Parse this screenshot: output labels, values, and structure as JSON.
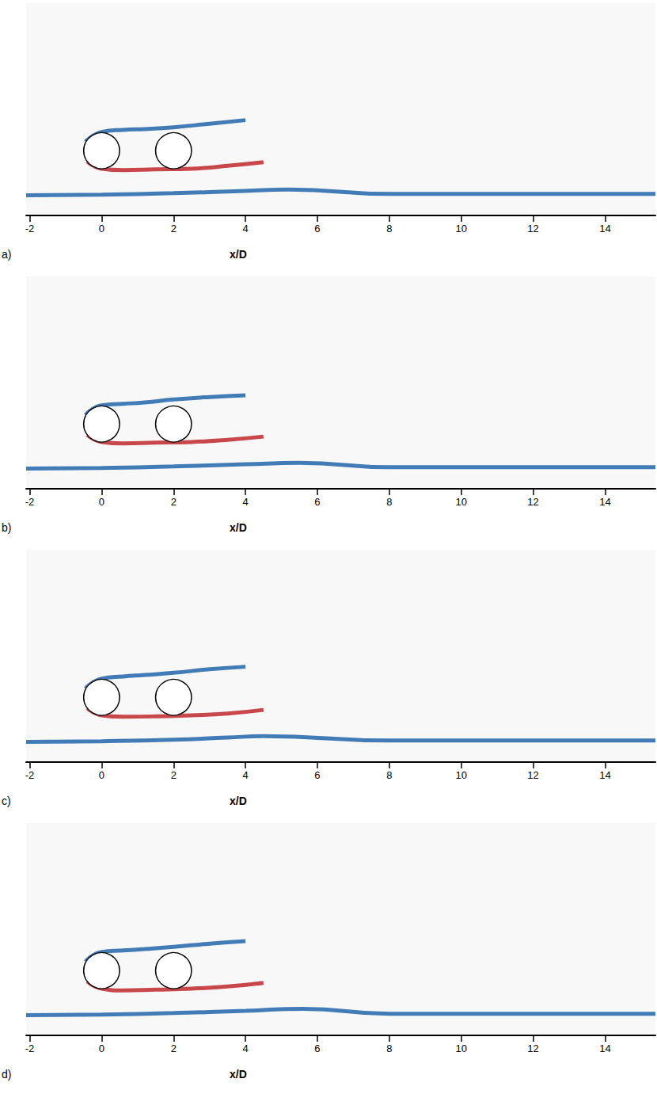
{
  "chart_data": [
    {
      "type": "flow_snapshot",
      "panel": "a)",
      "xlabel": "x/D",
      "xlim": [
        -2.1,
        15.4
      ],
      "xticks": [
        -2,
        0,
        2,
        4,
        6,
        8,
        10,
        12,
        14
      ],
      "ylim": [
        -0.5,
        5.4
      ],
      "tick_labels": "x",
      "cylinders": {
        "x": [
          0,
          2
        ],
        "y": [
          1.3,
          1.3
        ],
        "diameter": [
          1,
          1
        ],
        "color": "#ffffff"
      },
      "series": [
        {
          "type": "line",
          "color": "#2166ac",
          "x": [
            -0.45,
            0,
            0.6,
            1.2,
            2,
            3,
            4
          ],
          "values": [
            1.55,
            1.82,
            1.88,
            1.9,
            1.95,
            2.05,
            2.15
          ]
        },
        {
          "type": "line",
          "color": "#c0282d",
          "x": [
            -0.4,
            0,
            0.6,
            1.5,
            2.5,
            3.5,
            4.5
          ],
          "values": [
            1.0,
            0.8,
            0.76,
            0.78,
            0.8,
            0.88,
            0.98
          ]
        },
        {
          "type": "line",
          "color": "#2166ac",
          "x": [
            -2.1,
            0,
            2,
            4,
            5.2,
            8,
            12,
            15.4
          ],
          "values": [
            0.06,
            0.08,
            0.12,
            0.18,
            0.22,
            0.1,
            0.1,
            0.1
          ]
        }
      ]
    },
    {
      "type": "flow_snapshot",
      "panel": "b)",
      "xlabel": "x/D",
      "xlim": [
        -2.1,
        15.4
      ],
      "xticks": [
        -2,
        0,
        2,
        4,
        6,
        8,
        10,
        12,
        14
      ],
      "ylim": [
        -0.5,
        5.4
      ],
      "tick_labels": "x",
      "cylinders": {
        "x": [
          0,
          2
        ],
        "y": [
          1.3,
          1.3
        ],
        "diameter": [
          1,
          1
        ],
        "color": "#ffffff"
      },
      "series": [
        {
          "type": "line",
          "color": "#2166ac",
          "x": [
            -0.45,
            0,
            0.6,
            1.2,
            2,
            3,
            4
          ],
          "values": [
            1.55,
            1.82,
            1.86,
            1.9,
            1.98,
            2.05,
            2.1
          ]
        },
        {
          "type": "line",
          "color": "#c0282d",
          "x": [
            -0.4,
            0,
            0.6,
            1.5,
            2.5,
            3.5,
            4.5
          ],
          "values": [
            1.0,
            0.8,
            0.76,
            0.78,
            0.8,
            0.86,
            0.95
          ]
        },
        {
          "type": "line",
          "color": "#2166ac",
          "x": [
            -2.1,
            0,
            2,
            4,
            5.5,
            8,
            12,
            15.4
          ],
          "values": [
            0.06,
            0.08,
            0.12,
            0.18,
            0.22,
            0.1,
            0.1,
            0.1
          ]
        }
      ]
    },
    {
      "type": "flow_snapshot",
      "panel": "c)",
      "xlabel": "x/D",
      "xlim": [
        -2.1,
        15.4
      ],
      "xticks": [
        -2,
        0,
        2,
        4,
        6,
        8,
        10,
        12,
        14
      ],
      "ylim": [
        -0.5,
        5.4
      ],
      "tick_labels": "x",
      "cylinders": {
        "x": [
          0,
          2
        ],
        "y": [
          1.3,
          1.3
        ],
        "diameter": [
          1,
          1
        ],
        "color": "#ffffff"
      },
      "series": [
        {
          "type": "line",
          "color": "#2166ac",
          "x": [
            -0.45,
            0,
            0.6,
            1.2,
            2,
            3,
            4
          ],
          "values": [
            1.55,
            1.82,
            1.88,
            1.92,
            1.98,
            2.08,
            2.15
          ]
        },
        {
          "type": "line",
          "color": "#c0282d",
          "x": [
            -0.4,
            0,
            0.6,
            1.5,
            2.5,
            3.5,
            4.5
          ],
          "values": [
            1.0,
            0.8,
            0.76,
            0.77,
            0.8,
            0.85,
            0.95
          ]
        },
        {
          "type": "line",
          "color": "#2166ac",
          "x": [
            -2.1,
            0,
            2,
            3.5,
            4.5,
            8,
            12,
            15.4
          ],
          "values": [
            0.06,
            0.08,
            0.12,
            0.18,
            0.22,
            0.1,
            0.1,
            0.1
          ]
        }
      ]
    },
    {
      "type": "flow_snapshot",
      "panel": "d)",
      "xlabel": "x/D",
      "xlim": [
        -2.1,
        15.4
      ],
      "xticks": [
        -2,
        0,
        2,
        4,
        6,
        8,
        10,
        12,
        14
      ],
      "ylim": [
        -0.5,
        5.4
      ],
      "tick_labels": "x",
      "cylinders": {
        "x": [
          0,
          2
        ],
        "y": [
          1.3,
          1.3
        ],
        "diameter": [
          1,
          1
        ],
        "color": "#ffffff"
      },
      "series": [
        {
          "type": "line",
          "color": "#2166ac",
          "x": [
            -0.45,
            0,
            0.6,
            1.2,
            2,
            3,
            4
          ],
          "values": [
            1.55,
            1.82,
            1.86,
            1.9,
            1.96,
            2.05,
            2.12
          ]
        },
        {
          "type": "line",
          "color": "#c0282d",
          "x": [
            -0.4,
            0,
            0.6,
            1.5,
            2.5,
            3.5,
            4.5
          ],
          "values": [
            1.0,
            0.8,
            0.75,
            0.77,
            0.8,
            0.86,
            0.96
          ]
        },
        {
          "type": "line",
          "color": "#2166ac",
          "x": [
            -2.1,
            0,
            2,
            4,
            5.6,
            8,
            12,
            15.4
          ],
          "values": [
            0.06,
            0.08,
            0.12,
            0.18,
            0.24,
            0.1,
            0.1,
            0.1
          ]
        }
      ]
    }
  ]
}
